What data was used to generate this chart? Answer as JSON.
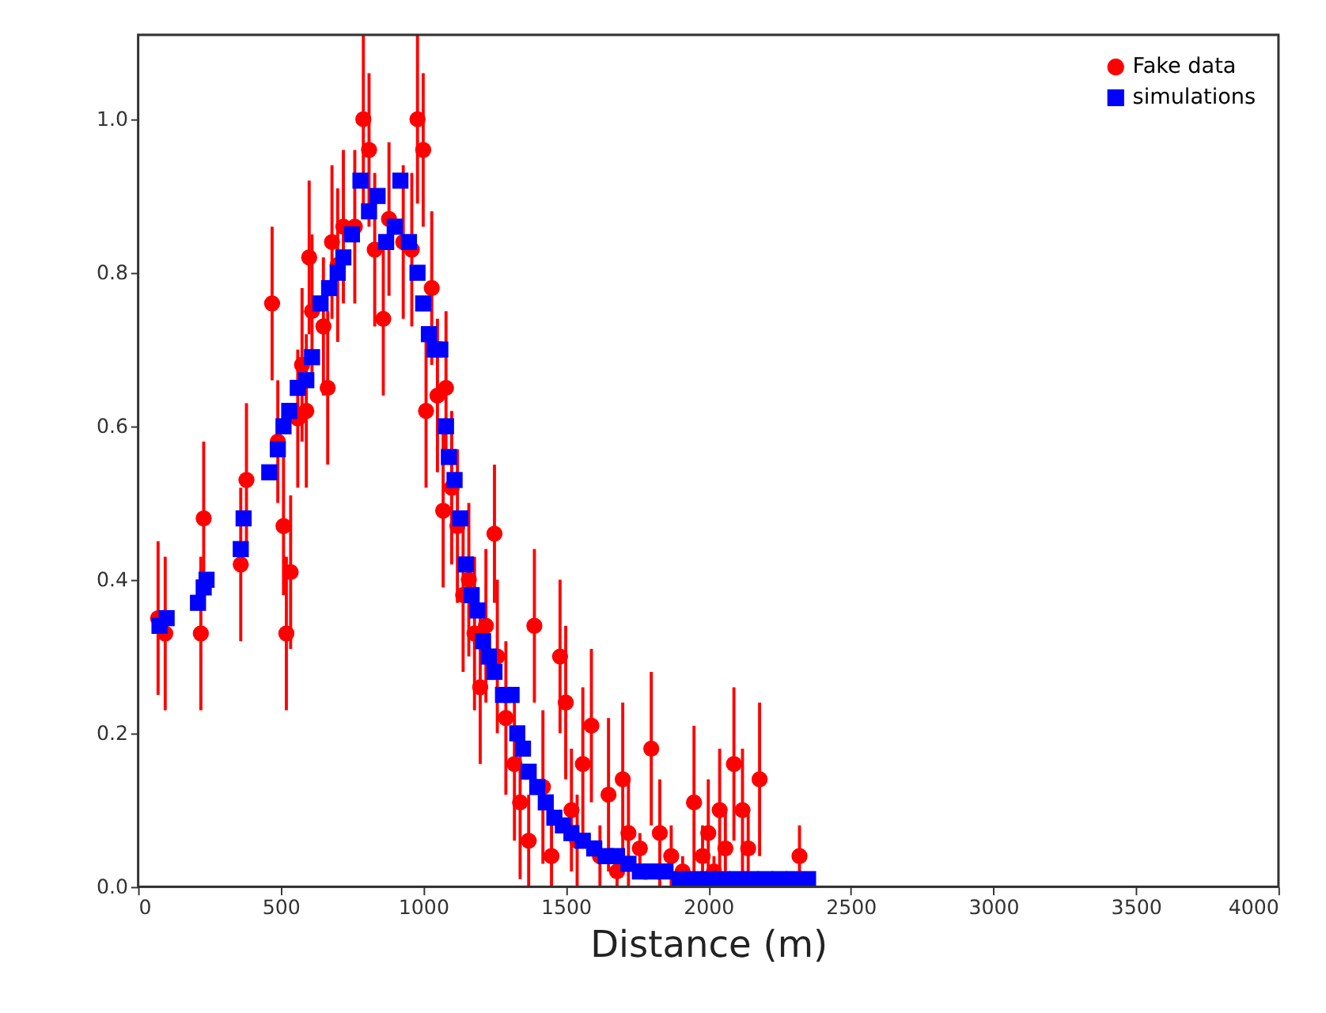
{
  "chart_data": {
    "type": "scatter",
    "xlabel": "Distance (m)",
    "xlim": [
      0,
      4000
    ],
    "xticks": [
      0,
      500,
      1000,
      1500,
      2000,
      2500,
      3000,
      3500,
      4000
    ],
    "ylim": [
      0,
      1.11
    ],
    "yticks": [
      {
        "value": 0,
        "label": "0.0"
      },
      {
        "value": 0.2,
        "label": "0.2"
      },
      {
        "value": 0.4,
        "label": "0.4"
      },
      {
        "value": 0.6,
        "label": "0.6"
      },
      {
        "value": 0.8,
        "label": "0.8"
      },
      {
        "value": 1.0,
        "label": "1.0"
      }
    ],
    "grid": false,
    "legend": "top right",
    "series": [
      {
        "name": "Fake data",
        "color": "#ff0000",
        "marker": "circle",
        "x": [
          70,
          95,
          220,
          230,
          360,
          380,
          470,
          490,
          510,
          520,
          535,
          560,
          575,
          590,
          600,
          610,
          650,
          665,
          680,
          700,
          720,
          760,
          790,
          810,
          830,
          860,
          880,
          930,
          960,
          980,
          1000,
          1010,
          1030,
          1050,
          1070,
          1080,
          1100,
          1120,
          1140,
          1160,
          1180,
          1200,
          1220,
          1250,
          1260,
          1290,
          1320,
          1340,
          1370,
          1390,
          1420,
          1450,
          1480,
          1500,
          1520,
          1540,
          1560,
          1590,
          1620,
          1650,
          1680,
          1700,
          1720,
          1760,
          1800,
          1830,
          1870,
          1910,
          1950,
          1980,
          2000,
          2020,
          2040,
          2060,
          2090,
          2120,
          2140,
          2180,
          2320
        ],
        "values": [
          0.35,
          0.33,
          0.33,
          0.48,
          0.42,
          0.53,
          0.76,
          0.58,
          0.47,
          0.33,
          0.41,
          0.61,
          0.68,
          0.62,
          0.82,
          0.75,
          0.73,
          0.65,
          0.84,
          0.81,
          0.86,
          0.86,
          1.0,
          0.96,
          0.83,
          0.74,
          0.87,
          0.84,
          0.83,
          1.0,
          0.96,
          0.62,
          0.78,
          0.64,
          0.49,
          0.65,
          0.52,
          0.47,
          0.38,
          0.4,
          0.33,
          0.26,
          0.34,
          0.46,
          0.3,
          0.22,
          0.16,
          0.11,
          0.06,
          0.34,
          0.13,
          0.04,
          0.3,
          0.24,
          0.1,
          0.06,
          0.16,
          0.21,
          0.04,
          0.12,
          0.02,
          0.14,
          0.07,
          0.05,
          0.18,
          0.07,
          0.04,
          0.02,
          0.11,
          0.04,
          0.07,
          0.02,
          0.1,
          0.05,
          0.16,
          0.1,
          0.05,
          0.14,
          0.04
        ],
        "errors": [
          0.1,
          0.1,
          0.1,
          0.1,
          0.1,
          0.1,
          0.1,
          0.08,
          0.09,
          0.1,
          0.1,
          0.09,
          0.1,
          0.1,
          0.1,
          0.1,
          0.09,
          0.1,
          0.1,
          0.1,
          0.1,
          0.1,
          0.11,
          0.1,
          0.1,
          0.1,
          0.1,
          0.1,
          0.1,
          0.11,
          0.1,
          0.1,
          0.1,
          0.1,
          0.1,
          0.1,
          0.1,
          0.1,
          0.1,
          0.1,
          0.1,
          0.1,
          0.1,
          0.09,
          0.1,
          0.1,
          0.1,
          0.1,
          0.06,
          0.1,
          0.1,
          0.04,
          0.1,
          0.1,
          0.08,
          0.06,
          0.1,
          0.1,
          0.04,
          0.1,
          0.02,
          0.1,
          0.07,
          0.02,
          0.1,
          0.07,
          0.04,
          0.02,
          0.1,
          0.04,
          0.07,
          0.02,
          0.08,
          0.05,
          0.1,
          0.08,
          0.05,
          0.1,
          0.04
        ]
      },
      {
        "name": "simulations",
        "color": "#0000ff",
        "marker": "square",
        "x": [
          75,
          100,
          210,
          230,
          240,
          360,
          370,
          460,
          490,
          510,
          530,
          560,
          590,
          610,
          640,
          670,
          700,
          720,
          750,
          780,
          810,
          840,
          870,
          900,
          920,
          950,
          980,
          1000,
          1020,
          1040,
          1060,
          1080,
          1090,
          1110,
          1130,
          1150,
          1170,
          1190,
          1210,
          1230,
          1250,
          1280,
          1310,
          1330,
          1350,
          1370,
          1400,
          1430,
          1460,
          1490,
          1520,
          1560,
          1600,
          1640,
          1680,
          1720,
          1760,
          1800,
          1850,
          1900,
          1950,
          2000,
          2050,
          2100,
          2150,
          2200,
          2250,
          2300,
          2350
        ],
        "values": [
          0.34,
          0.35,
          0.37,
          0.39,
          0.4,
          0.44,
          0.48,
          0.54,
          0.57,
          0.6,
          0.62,
          0.65,
          0.66,
          0.69,
          0.76,
          0.78,
          0.8,
          0.82,
          0.85,
          0.92,
          0.88,
          0.9,
          0.84,
          0.86,
          0.92,
          0.84,
          0.8,
          0.76,
          0.72,
          0.7,
          0.7,
          0.6,
          0.56,
          0.53,
          0.48,
          0.42,
          0.38,
          0.36,
          0.32,
          0.3,
          0.28,
          0.25,
          0.25,
          0.2,
          0.18,
          0.15,
          0.13,
          0.11,
          0.09,
          0.08,
          0.07,
          0.06,
          0.05,
          0.04,
          0.04,
          0.03,
          0.02,
          0.02,
          0.02,
          0.01,
          0.01,
          0.01,
          0.01,
          0.01,
          0.01,
          0.01,
          0.01,
          0.01,
          0.01
        ]
      }
    ]
  }
}
